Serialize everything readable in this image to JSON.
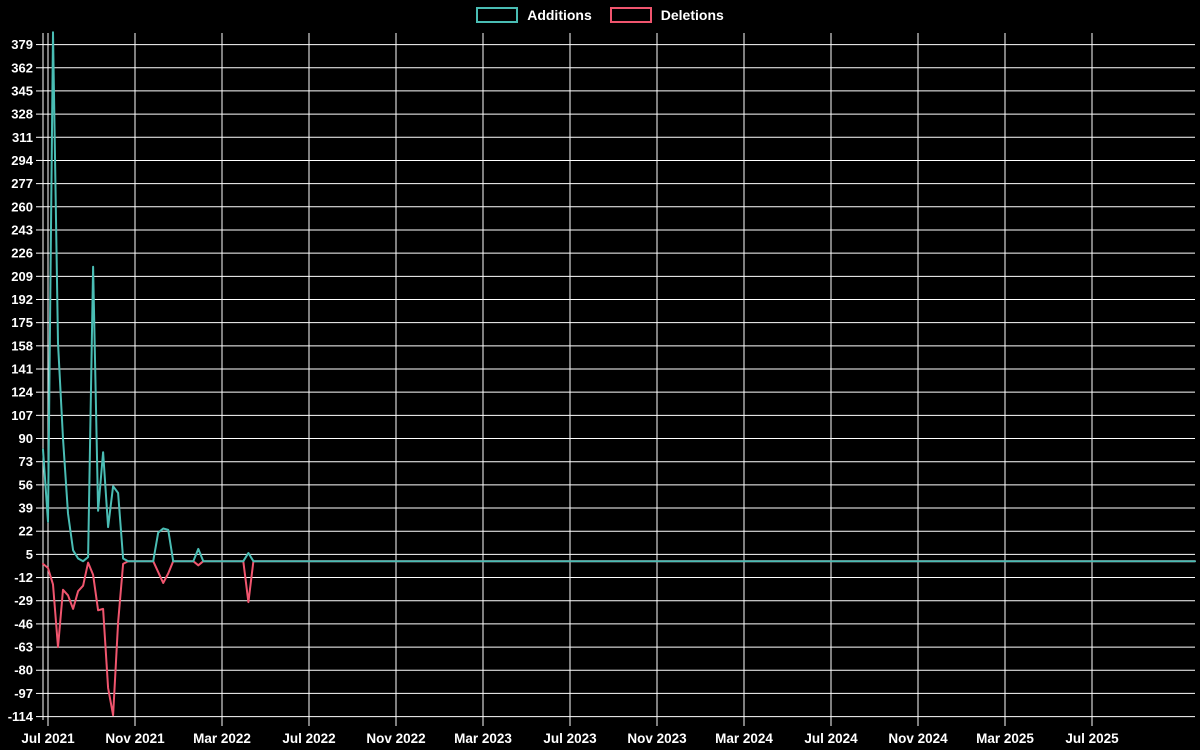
{
  "legend": {
    "items": [
      {
        "label": "Additions",
        "color": "#4abdb4"
      },
      {
        "label": "Deletions",
        "color": "#f0556e"
      }
    ]
  },
  "chart_data": {
    "type": "line",
    "title": "",
    "xlabel": "",
    "ylabel": "",
    "background_color": "#000000",
    "grid": true,
    "grid_color": "#ffffff",
    "text_color": "#ffffff",
    "legend_position": "top-center",
    "x_unit": "week",
    "x_tick_labels": [
      "Jul 2021",
      "Nov 2021",
      "Mar 2022",
      "Jul 2022",
      "Nov 2022",
      "Mar 2023",
      "Jul 2023",
      "Nov 2023",
      "Mar 2024",
      "Jul 2024",
      "Nov 2024",
      "Mar 2025",
      "Jul 2025"
    ],
    "y_ticks": {
      "max": 379,
      "min": -114,
      "step": 17
    },
    "ylim": [
      -116.5,
      387.5
    ],
    "series": [
      {
        "name": "Additions",
        "color": "#4abdb4",
        "weekly_values": [
          82,
          29,
          388,
          160,
          90,
          35,
          8,
          2,
          0,
          3,
          216,
          37,
          80,
          25,
          55,
          50,
          2,
          0,
          0,
          0,
          0,
          0,
          0,
          21,
          24,
          23,
          0,
          0,
          0,
          0,
          0,
          9,
          0,
          0,
          0,
          0,
          0,
          0,
          0,
          0,
          0,
          6
        ]
      },
      {
        "name": "Deletions",
        "color": "#f0556e",
        "weekly_values": [
          -2,
          -5,
          -17,
          -63,
          -21,
          -25,
          -35,
          -22,
          -18,
          -1,
          -10,
          -36,
          -35,
          -93,
          -113,
          -45,
          -2,
          0,
          0,
          0,
          0,
          0,
          0,
          -8,
          -16,
          -9,
          0,
          0,
          0,
          0,
          0,
          -3,
          0,
          0,
          0,
          0,
          0,
          0,
          0,
          0,
          0,
          -30
        ]
      }
    ],
    "tail_zero_weeks": 189
  }
}
